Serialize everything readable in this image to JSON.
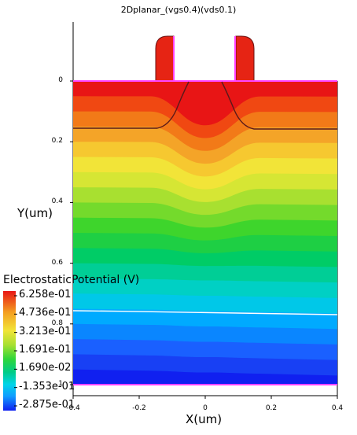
{
  "title": "2Dplanar_(vgs0.4)(vds0.1)",
  "xlabel": "X(um)",
  "ylabel": "Y(um)",
  "legend": {
    "title": "ElectrostaticPotential (V)",
    "ticks": [
      "6.258e-01",
      "4.736e-01",
      "3.213e-01",
      "1.691e-01",
      "1.690e-02",
      "-1.353e-01",
      "-2.875e-01"
    ],
    "colors": [
      "#e81515",
      "#f06010",
      "#f4a020",
      "#f2e438",
      "#b8e030",
      "#4fd52a",
      "#00cc66",
      "#00cfc8",
      "#00b0ff",
      "#1f6bff",
      "#1020f0"
    ]
  },
  "chart_data": {
    "type": "heatmap",
    "title": "2Dplanar_(vgs0.4)(vds0.1)",
    "xlabel": "X(um)",
    "ylabel": "Y(um)",
    "xlim": [
      -0.4,
      0.4
    ],
    "ylim": [
      1,
      0
    ],
    "xticks": [
      "-0.4",
      "-0.2",
      "0",
      "0.2",
      "0.4"
    ],
    "yticks": [
      "0",
      "0.2",
      "0.4",
      "0.6",
      "0.8",
      "1"
    ],
    "colorbar": {
      "label": "ElectrostaticPotential (V)",
      "range": [
        -0.2875,
        0.6258
      ],
      "ticks": [
        0.6258,
        0.4736,
        0.3213,
        0.1691,
        0.0169,
        -0.1353,
        -0.2875
      ]
    },
    "junction_depth_um": 0.16,
    "spacer_top_um": -0.15,
    "spacer_x_um": [
      [
        -0.15,
        -0.09
      ],
      [
        0.09,
        0.15
      ]
    ],
    "gate_span_um": [
      -0.06,
      0.06
    ]
  }
}
